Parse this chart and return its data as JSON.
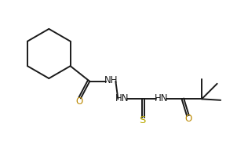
{
  "bg_color": "#ffffff",
  "bond_color": "#1a1a1a",
  "O_color": "#bb8800",
  "S_color": "#bbaa00",
  "font_size": 8.5,
  "line_width": 1.4,
  "fig_width": 3.02,
  "fig_height": 1.85,
  "dpi": 100,
  "xlim": [
    0,
    10
  ],
  "ylim": [
    0,
    6.1
  ]
}
